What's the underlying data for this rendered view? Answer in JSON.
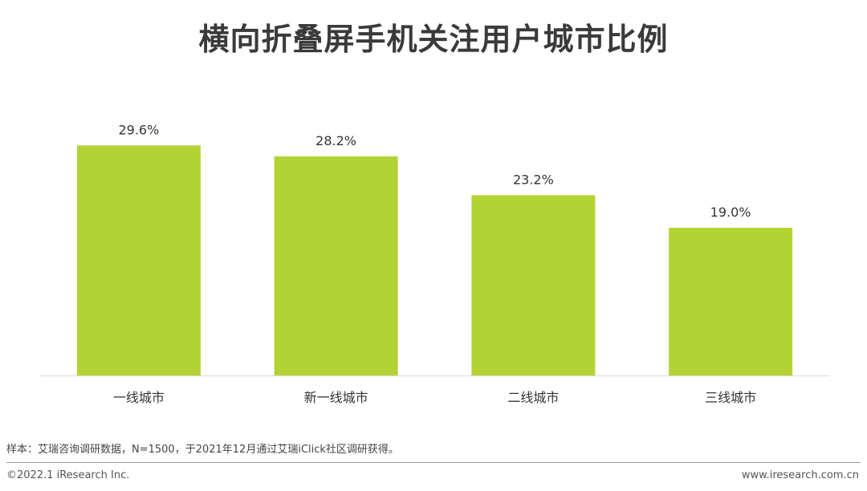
{
  "title": "横向折叠屏手机关注用户城市比例",
  "colors": {
    "bar": "#b3d334",
    "axis": "#d9d9d9",
    "text": "#333333"
  },
  "chart_data": {
    "type": "bar",
    "categories": [
      "一线城市",
      "新一线城市",
      "二线城市",
      "三线城市"
    ],
    "values": [
      29.6,
      28.2,
      23.2,
      19.0
    ],
    "data_labels": [
      "29.6%",
      "28.2%",
      "23.2%",
      "19.0%"
    ],
    "unit": "%",
    "title": "横向折叠屏手机关注用户城市比例",
    "xlabel": "",
    "ylabel": "",
    "ylim": [
      0,
      32
    ],
    "grid": false,
    "legend": "none"
  },
  "footer": {
    "note": "样本：艾瑞咨询调研数据，N=1500，于2021年12月通过艾瑞iClick社区调研获得。",
    "copyright": "©2022.1 iResearch Inc.",
    "website": "www.iresearch.com.cn"
  }
}
